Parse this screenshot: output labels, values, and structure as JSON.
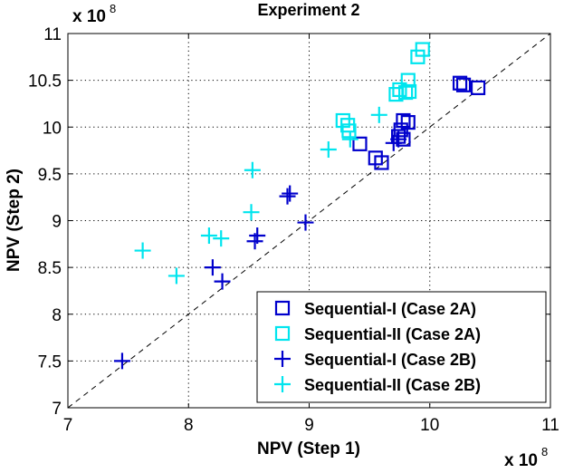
{
  "chart_data": {
    "type": "scatter",
    "title": "Experiment 2",
    "xlabel": "NPV (Step 1)",
    "ylabel": "NPV (Step 2)",
    "xlim": [
      7,
      11
    ],
    "ylim": [
      7,
      11
    ],
    "x_ticks": [
      "7",
      "8",
      "9",
      "10",
      "11"
    ],
    "y_ticks": [
      "7",
      "7.5",
      "8",
      "8.5",
      "9",
      "9.5",
      "10",
      "10.5",
      "11"
    ],
    "x_multiplier": {
      "base": "x 10",
      "exponent": "8"
    },
    "y_multiplier": {
      "base": "x 10",
      "exponent": "8"
    },
    "grid": true,
    "reference_line": {
      "style": "dashed",
      "from": [
        7,
        7
      ],
      "to": [
        11,
        11
      ]
    },
    "legend_position": "bottom-right",
    "series": [
      {
        "name": "Sequential-I (Case 2A)",
        "marker": "square",
        "color": "#0000CC",
        "points": [
          [
            10.25,
            10.47
          ],
          [
            10.28,
            10.45
          ],
          [
            10.4,
            10.42
          ],
          [
            9.78,
            10.07
          ],
          [
            9.82,
            10.05
          ],
          [
            9.76,
            9.97
          ],
          [
            9.74,
            9.9
          ],
          [
            9.78,
            9.87
          ],
          [
            9.42,
            9.82
          ],
          [
            9.55,
            9.67
          ],
          [
            9.6,
            9.62
          ]
        ]
      },
      {
        "name": "Sequential-II (Case 2A)",
        "marker": "square",
        "color": "#00E5EE",
        "points": [
          [
            9.94,
            10.83
          ],
          [
            9.9,
            10.75
          ],
          [
            9.82,
            10.5
          ],
          [
            9.75,
            10.4
          ],
          [
            9.72,
            10.35
          ],
          [
            9.8,
            10.37
          ],
          [
            9.83,
            10.38
          ],
          [
            9.28,
            10.07
          ],
          [
            9.32,
            10.02
          ],
          [
            9.33,
            9.96
          ]
        ]
      },
      {
        "name": "Sequential-I (Case 2B)",
        "marker": "plus",
        "color": "#0000CC",
        "points": [
          [
            7.45,
            7.5
          ],
          [
            8.2,
            8.5
          ],
          [
            8.28,
            8.35
          ],
          [
            8.55,
            8.78
          ],
          [
            8.57,
            8.84
          ],
          [
            8.82,
            9.26
          ],
          [
            8.84,
            9.29
          ],
          [
            8.97,
            8.98
          ],
          [
            9.7,
            9.83
          ],
          [
            9.74,
            9.87
          ]
        ]
      },
      {
        "name": "Sequential-II (Case 2B)",
        "marker": "plus",
        "color": "#00E5EE",
        "points": [
          [
            7.62,
            8.68
          ],
          [
            7.9,
            8.41
          ],
          [
            8.17,
            8.84
          ],
          [
            8.27,
            8.81
          ],
          [
            8.53,
            9.54
          ],
          [
            8.52,
            9.09
          ],
          [
            9.16,
            9.76
          ],
          [
            9.34,
            9.87
          ],
          [
            9.58,
            10.13
          ]
        ]
      }
    ]
  }
}
